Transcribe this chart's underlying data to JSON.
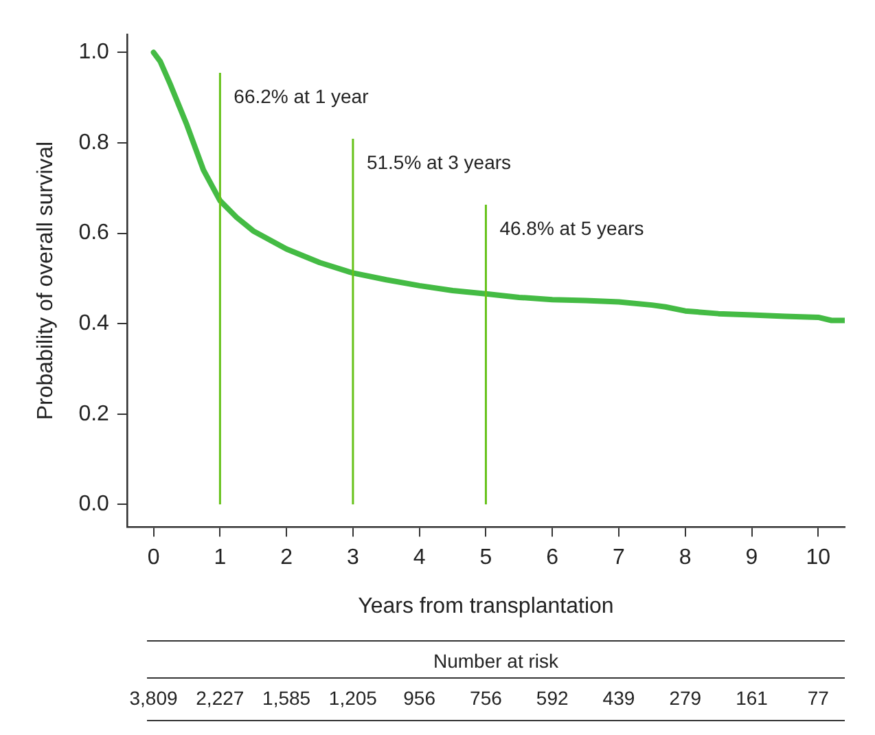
{
  "chart_data": {
    "type": "line",
    "xlabel": "Years from transplantation",
    "ylabel": "Probability of overall survival",
    "x": [
      0,
      0.1,
      0.25,
      0.5,
      0.75,
      1,
      1.25,
      1.5,
      2,
      2.5,
      3,
      3.5,
      4,
      4.5,
      5,
      5.5,
      6,
      6.5,
      7,
      7.5,
      7.7,
      8,
      8.5,
      9,
      9.5,
      10,
      10.2,
      10.4
    ],
    "series": [
      {
        "color": "#44bb44",
        "values": [
          1.0,
          0.98,
          0.93,
          0.84,
          0.74,
          0.672,
          0.635,
          0.605,
          0.565,
          0.535,
          0.512,
          0.497,
          0.484,
          0.473,
          0.466,
          0.458,
          0.453,
          0.451,
          0.448,
          0.441,
          0.437,
          0.428,
          0.422,
          0.419,
          0.416,
          0.414,
          0.407,
          0.407
        ]
      }
    ],
    "xlim": [
      -0.4,
      10.4
    ],
    "xticks": [
      0,
      1,
      2,
      3,
      4,
      5,
      6,
      7,
      8,
      9,
      10
    ],
    "ylim": [
      -0.05,
      1.04
    ],
    "yticks": [
      {
        "value": 0,
        "label": "0.0"
      },
      0.2,
      0.4,
      0.6,
      0.8,
      {
        "value": 1,
        "label": "1.0"
      }
    ],
    "ref_lines": [
      {
        "axis": "x",
        "value": 1,
        "label": "66.2% at 1 year",
        "color": "#66c21a"
      },
      {
        "axis": "x",
        "value": 3,
        "label": "51.5% at 3 years",
        "color": "#66c21a"
      },
      {
        "axis": "x",
        "value": 5,
        "label": "46.8% at 5 years",
        "color": "#66c21a"
      }
    ],
    "annotations": [
      "Number at risk",
      "3,809",
      "2,227",
      "1,585",
      "1,205",
      "956",
      "756",
      "592",
      "439",
      "279",
      "161",
      "77"
    ],
    "grid": false,
    "legend": false,
    "marker": "none",
    "line_style": "solid"
  }
}
